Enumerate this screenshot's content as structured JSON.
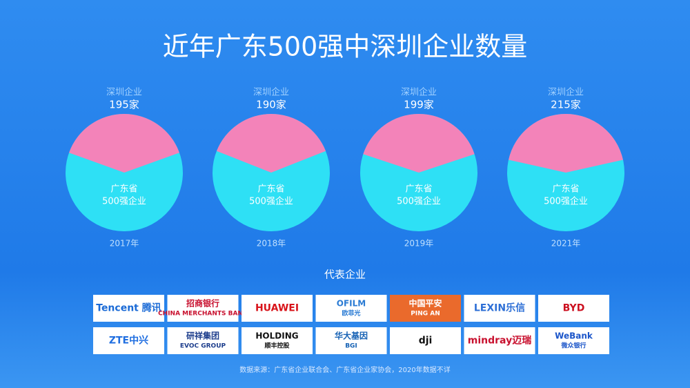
{
  "chart_data": {
    "type": "pie",
    "title": "近年广东500强中深圳企业数量",
    "categories": [
      "2017年",
      "2018年",
      "2019年",
      "2021年"
    ],
    "value_name": "深圳企业",
    "values": [
      195,
      190,
      199,
      215
    ],
    "value_labels": [
      "195家",
      "190家",
      "199家",
      "215家"
    ],
    "total": 500,
    "total_label": [
      "广东省",
      "500强企业"
    ],
    "color": "#f383b9",
    "total_color": "#2ee0f5"
  },
  "companies": {
    "title": "代表企业",
    "logos": [
      {
        "lines": [
          "Tencent 腾讯"
        ],
        "color": "#1a6ad6",
        "bg": "#ffffff"
      },
      {
        "lines": [
          "招商银行",
          "CHINA MERCHANTS BANK"
        ],
        "color": "#c8102e",
        "bg": "#ffffff"
      },
      {
        "lines": [
          "HUAWEI"
        ],
        "color": "#d8131a",
        "bg": "#ffffff"
      },
      {
        "lines": [
          "OFILM",
          "欧菲光"
        ],
        "color": "#2a7bd4",
        "bg": "#ffffff"
      },
      {
        "lines": [
          "中国平安",
          "PING AN"
        ],
        "color": "#ffffff",
        "bg": "#ea6a2c"
      },
      {
        "lines": [
          "LEXIN乐信"
        ],
        "color": "#2d6fd6",
        "bg": "#ffffff"
      },
      {
        "lines": [
          "BYD"
        ],
        "color": "#cc1020",
        "bg": "#ffffff"
      },
      {
        "lines": [
          "ZTE中兴"
        ],
        "color": "#1f6ee0",
        "bg": "#ffffff"
      },
      {
        "lines": [
          "研祥集团",
          "EVOC GROUP"
        ],
        "color": "#1c3d8c",
        "bg": "#ffffff"
      },
      {
        "lines": [
          "HOLDING",
          "顺丰控股"
        ],
        "color": "#111111",
        "bg": "#ffffff"
      },
      {
        "lines": [
          "华大基因",
          "BGI"
        ],
        "color": "#1561b4",
        "bg": "#ffffff"
      },
      {
        "lines": [
          "dji"
        ],
        "color": "#111111",
        "bg": "#ffffff"
      },
      {
        "lines": [
          "mindray迈瑞"
        ],
        "color": "#c8102e",
        "bg": "#ffffff"
      },
      {
        "lines": [
          "WeBank",
          "微众银行"
        ],
        "color": "#1b55c9",
        "bg": "#ffffff"
      }
    ]
  },
  "source": "数据来源：广东省企业联合会、广东省企业家协会，2020年数据不详"
}
